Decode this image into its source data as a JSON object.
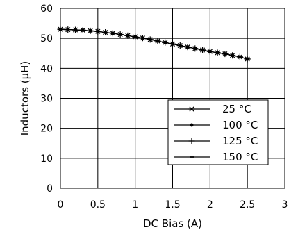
{
  "chart_data": {
    "type": "line",
    "title": "",
    "xlabel": "DC Bias (A)",
    "ylabel": "Inductors (µH)",
    "xlim": [
      0,
      3
    ],
    "ylim": [
      0,
      60
    ],
    "x_ticks": [
      0,
      0.5,
      1,
      1.5,
      2,
      2.5,
      3
    ],
    "x_tick_labels": [
      "0",
      "0.5",
      "1",
      "1.5",
      "2",
      "2.5",
      "3"
    ],
    "y_ticks": [
      0,
      10,
      20,
      30,
      40,
      50,
      60
    ],
    "y_tick_labels": [
      "0",
      "10",
      "20",
      "30",
      "40",
      "50",
      "60"
    ],
    "grid": true,
    "legend_position": "bottom-right",
    "x": [
      0,
      0.1,
      0.2,
      0.3,
      0.4,
      0.5,
      0.6,
      0.7,
      0.8,
      0.9,
      1.0,
      1.1,
      1.2,
      1.3,
      1.4,
      1.5,
      1.6,
      1.7,
      1.8,
      1.9,
      2.0,
      2.1,
      2.2,
      2.3,
      2.4,
      2.5
    ],
    "series": [
      {
        "name": "25 °C",
        "marker": "asterisk",
        "values": [
          53.0,
          52.9,
          52.8,
          52.7,
          52.5,
          52.3,
          52.0,
          51.7,
          51.3,
          50.9,
          50.5,
          50.1,
          49.6,
          49.1,
          48.6,
          48.1,
          47.6,
          47.1,
          46.6,
          46.1,
          45.6,
          45.2,
          44.8,
          44.3,
          43.8,
          43.1
        ]
      },
      {
        "name": "100 °C",
        "marker": "dot",
        "values": [
          53.0,
          52.9,
          52.8,
          52.7,
          52.5,
          52.3,
          52.0,
          51.7,
          51.3,
          50.9,
          50.5,
          50.1,
          49.6,
          49.1,
          48.6,
          48.1,
          47.6,
          47.1,
          46.6,
          46.1,
          45.6,
          45.2,
          44.8,
          44.3,
          43.8,
          43.1
        ]
      },
      {
        "name": "125 °C",
        "marker": "plus",
        "values": [
          53.0,
          52.9,
          52.8,
          52.7,
          52.5,
          52.3,
          52.0,
          51.7,
          51.3,
          50.9,
          50.5,
          50.1,
          49.6,
          49.1,
          48.6,
          48.1,
          47.6,
          47.1,
          46.6,
          46.1,
          45.6,
          45.2,
          44.8,
          44.3,
          43.8,
          43.1
        ]
      },
      {
        "name": "150 °C",
        "marker": "dash",
        "values": [
          53.0,
          52.9,
          52.8,
          52.7,
          52.5,
          52.3,
          52.0,
          51.7,
          51.3,
          50.9,
          50.5,
          50.1,
          49.6,
          49.1,
          48.6,
          48.1,
          47.6,
          47.1,
          46.6,
          46.1,
          45.6,
          45.2,
          44.8,
          44.3,
          43.8,
          43.1
        ]
      }
    ],
    "colors": {
      "line": "#000000",
      "grid": "#000000",
      "background": "#ffffff"
    }
  }
}
